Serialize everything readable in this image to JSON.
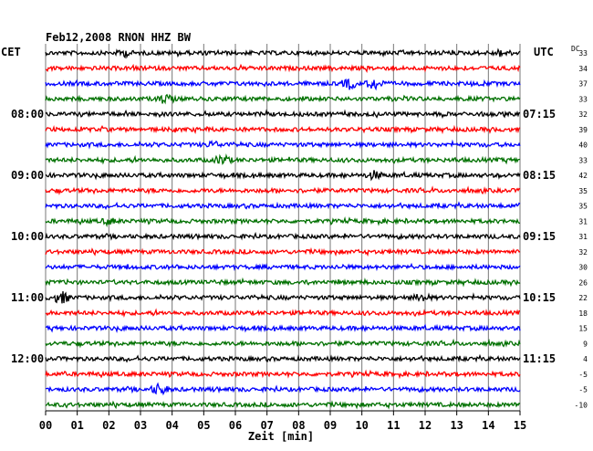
{
  "header": {
    "title": "Feb12,2008   RNON HHZ BW",
    "left_tz": "CET",
    "right_tz": "UTC",
    "dc_header": "DC"
  },
  "chart_data": {
    "type": "line",
    "title": "Feb12,2008   RNON HHZ BW",
    "xlabel": "Zeit [min]",
    "ylabel": "",
    "xlim": [
      0,
      15
    ],
    "x_ticks": [
      "00",
      "01",
      "02",
      "03",
      "04",
      "05",
      "06",
      "07",
      "08",
      "09",
      "10",
      "11",
      "12",
      "13",
      "14",
      "15"
    ],
    "left_time_labels": [
      "08:00",
      "09:00",
      "10:00",
      "11:00",
      "12:00"
    ],
    "right_time_labels": [
      "07:15",
      "08:15",
      "09:15",
      "10:15",
      "11:15"
    ],
    "grid": true,
    "trace_colors": [
      "#000000",
      "#ff0000",
      "#0000ff",
      "#007000"
    ],
    "dc_offsets": [
      33,
      34,
      37,
      33,
      32,
      39,
      40,
      33,
      42,
      35,
      35,
      31,
      31,
      32,
      30,
      26,
      22,
      18,
      15,
      9,
      4,
      -5,
      -5,
      -10
    ],
    "bursts": [
      {
        "trace": 0,
        "minute": 2.5,
        "amp": 3
      },
      {
        "trace": 0,
        "minute": 14.4,
        "amp": 3
      },
      {
        "trace": 2,
        "minute": 9.6,
        "amp": 5
      },
      {
        "trace": 2,
        "minute": 10.4,
        "amp": 6
      },
      {
        "trace": 3,
        "minute": 3.8,
        "amp": 5
      },
      {
        "trace": 6,
        "minute": 5.3,
        "amp": 3
      },
      {
        "trace": 7,
        "minute": 5.6,
        "amp": 5
      },
      {
        "trace": 8,
        "minute": 10.4,
        "amp": 4
      },
      {
        "trace": 11,
        "minute": 2.0,
        "amp": 3
      },
      {
        "trace": 16,
        "minute": 0.5,
        "amp": 6
      },
      {
        "trace": 16,
        "minute": 11.9,
        "amp": 4
      },
      {
        "trace": 22,
        "minute": 3.6,
        "amp": 6
      }
    ]
  }
}
